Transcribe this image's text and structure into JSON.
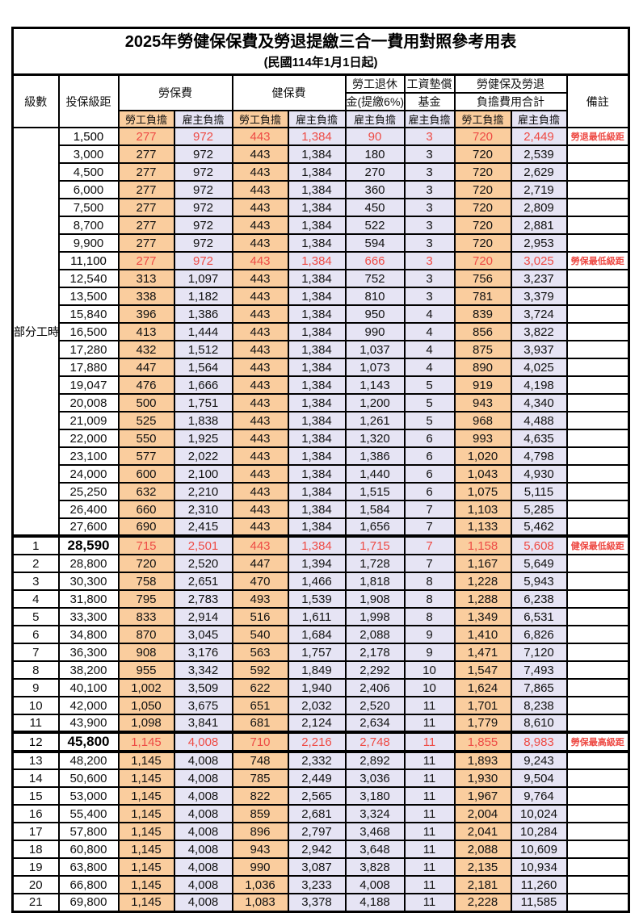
{
  "title": "2025年勞健保保費及勞退提繳三合一費用對照參考用表",
  "subtitle": "(民國114年1月1日起)",
  "headers": {
    "level": "級數",
    "bracket": "投保級距",
    "labor_ins": "勞保費",
    "health_ins": "健保費",
    "pension_line1": "勞工退休",
    "pension_line2": "金(提繳6%)",
    "wage_fund_line1": "工資墊償",
    "wage_fund_line2": "基金",
    "total_line1": "勞健保及勞退",
    "total_line2": "負擔費用合計",
    "note": "備註",
    "employee_share": "勞工負擔",
    "employer_share": "雇主負擔"
  },
  "part_time_label": "部分工時",
  "colors": {
    "employee_share_bg": "#FACD9E",
    "employer_share_bg": "#E6E4F4",
    "highlight_red": "#EE4B45",
    "border_black": "#000000"
  },
  "rows": [
    {
      "level": "",
      "bracket": "1,500",
      "labor_emp": "277",
      "labor_er": "972",
      "health_emp": "443",
      "health_er": "1,384",
      "pension_er": "90",
      "fund_er": "3",
      "total_emp": "720",
      "total_er": "2,449",
      "note": "勞退最低級距",
      "hl": true
    },
    {
      "level": "",
      "bracket": "3,000",
      "labor_emp": "277",
      "labor_er": "972",
      "health_emp": "443",
      "health_er": "1,384",
      "pension_er": "180",
      "fund_er": "3",
      "total_emp": "720",
      "total_er": "2,539",
      "note": ""
    },
    {
      "level": "",
      "bracket": "4,500",
      "labor_emp": "277",
      "labor_er": "972",
      "health_emp": "443",
      "health_er": "1,384",
      "pension_er": "270",
      "fund_er": "3",
      "total_emp": "720",
      "total_er": "2,629",
      "note": ""
    },
    {
      "level": "",
      "bracket": "6,000",
      "labor_emp": "277",
      "labor_er": "972",
      "health_emp": "443",
      "health_er": "1,384",
      "pension_er": "360",
      "fund_er": "3",
      "total_emp": "720",
      "total_er": "2,719",
      "note": ""
    },
    {
      "level": "",
      "bracket": "7,500",
      "labor_emp": "277",
      "labor_er": "972",
      "health_emp": "443",
      "health_er": "1,384",
      "pension_er": "450",
      "fund_er": "3",
      "total_emp": "720",
      "total_er": "2,809",
      "note": ""
    },
    {
      "level": "",
      "bracket": "8,700",
      "labor_emp": "277",
      "labor_er": "972",
      "health_emp": "443",
      "health_er": "1,384",
      "pension_er": "522",
      "fund_er": "3",
      "total_emp": "720",
      "total_er": "2,881",
      "note": ""
    },
    {
      "level": "",
      "bracket": "9,900",
      "labor_emp": "277",
      "labor_er": "972",
      "health_emp": "443",
      "health_er": "1,384",
      "pension_er": "594",
      "fund_er": "3",
      "total_emp": "720",
      "total_er": "2,953",
      "note": ""
    },
    {
      "level": "",
      "bracket": "11,100",
      "labor_emp": "277",
      "labor_er": "972",
      "health_emp": "443",
      "health_er": "1,384",
      "pension_er": "666",
      "fund_er": "3",
      "total_emp": "720",
      "total_er": "3,025",
      "note": "勞保最低級距",
      "hl": true
    },
    {
      "level": "",
      "bracket": "12,540",
      "labor_emp": "313",
      "labor_er": "1,097",
      "health_emp": "443",
      "health_er": "1,384",
      "pension_er": "752",
      "fund_er": "3",
      "total_emp": "756",
      "total_er": "3,237",
      "note": ""
    },
    {
      "level": "",
      "bracket": "13,500",
      "labor_emp": "338",
      "labor_er": "1,182",
      "health_emp": "443",
      "health_er": "1,384",
      "pension_er": "810",
      "fund_er": "3",
      "total_emp": "781",
      "total_er": "3,379",
      "note": ""
    },
    {
      "level": "",
      "bracket": "15,840",
      "labor_emp": "396",
      "labor_er": "1,386",
      "health_emp": "443",
      "health_er": "1,384",
      "pension_er": "950",
      "fund_er": "4",
      "total_emp": "839",
      "total_er": "3,724",
      "note": ""
    },
    {
      "level": "",
      "bracket": "16,500",
      "labor_emp": "413",
      "labor_er": "1,444",
      "health_emp": "443",
      "health_er": "1,384",
      "pension_er": "990",
      "fund_er": "4",
      "total_emp": "856",
      "total_er": "3,822",
      "note": ""
    },
    {
      "level": "",
      "bracket": "17,280",
      "labor_emp": "432",
      "labor_er": "1,512",
      "health_emp": "443",
      "health_er": "1,384",
      "pension_er": "1,037",
      "fund_er": "4",
      "total_emp": "875",
      "total_er": "3,937",
      "note": ""
    },
    {
      "level": "",
      "bracket": "17,880",
      "labor_emp": "447",
      "labor_er": "1,564",
      "health_emp": "443",
      "health_er": "1,384",
      "pension_er": "1,073",
      "fund_er": "4",
      "total_emp": "890",
      "total_er": "4,025",
      "note": ""
    },
    {
      "level": "",
      "bracket": "19,047",
      "labor_emp": "476",
      "labor_er": "1,666",
      "health_emp": "443",
      "health_er": "1,384",
      "pension_er": "1,143",
      "fund_er": "5",
      "total_emp": "919",
      "total_er": "4,198",
      "note": ""
    },
    {
      "level": "",
      "bracket": "20,008",
      "labor_emp": "500",
      "labor_er": "1,751",
      "health_emp": "443",
      "health_er": "1,384",
      "pension_er": "1,200",
      "fund_er": "5",
      "total_emp": "943",
      "total_er": "4,340",
      "note": ""
    },
    {
      "level": "",
      "bracket": "21,009",
      "labor_emp": "525",
      "labor_er": "1,838",
      "health_emp": "443",
      "health_er": "1,384",
      "pension_er": "1,261",
      "fund_er": "5",
      "total_emp": "968",
      "total_er": "4,488",
      "note": ""
    },
    {
      "level": "",
      "bracket": "22,000",
      "labor_emp": "550",
      "labor_er": "1,925",
      "health_emp": "443",
      "health_er": "1,384",
      "pension_er": "1,320",
      "fund_er": "6",
      "total_emp": "993",
      "total_er": "4,635",
      "note": ""
    },
    {
      "level": "",
      "bracket": "23,100",
      "labor_emp": "577",
      "labor_er": "2,022",
      "health_emp": "443",
      "health_er": "1,384",
      "pension_er": "1,386",
      "fund_er": "6",
      "total_emp": "1,020",
      "total_er": "4,798",
      "note": ""
    },
    {
      "level": "",
      "bracket": "24,000",
      "labor_emp": "600",
      "labor_er": "2,100",
      "health_emp": "443",
      "health_er": "1,384",
      "pension_er": "1,440",
      "fund_er": "6",
      "total_emp": "1,043",
      "total_er": "4,930",
      "note": ""
    },
    {
      "level": "",
      "bracket": "25,250",
      "labor_emp": "632",
      "labor_er": "2,210",
      "health_emp": "443",
      "health_er": "1,384",
      "pension_er": "1,515",
      "fund_er": "6",
      "total_emp": "1,075",
      "total_er": "5,115",
      "note": ""
    },
    {
      "level": "",
      "bracket": "26,400",
      "labor_emp": "660",
      "labor_er": "2,310",
      "health_emp": "443",
      "health_er": "1,384",
      "pension_er": "1,584",
      "fund_er": "7",
      "total_emp": "1,103",
      "total_er": "5,285",
      "note": ""
    },
    {
      "level": "",
      "bracket": "27,600",
      "labor_emp": "690",
      "labor_er": "2,415",
      "health_emp": "443",
      "health_er": "1,384",
      "pension_er": "1,656",
      "fund_er": "7",
      "total_emp": "1,133",
      "total_er": "5,462",
      "note": ""
    },
    {
      "level": "1",
      "bracket": "28,590",
      "labor_emp": "715",
      "labor_er": "2,501",
      "health_emp": "443",
      "health_er": "1,384",
      "pension_er": "1,715",
      "fund_er": "7",
      "total_emp": "1,158",
      "total_er": "5,608",
      "note": "健保最低級距",
      "hl": true,
      "em": true,
      "sep": "top"
    },
    {
      "level": "2",
      "bracket": "28,800",
      "labor_emp": "720",
      "labor_er": "2,520",
      "health_emp": "447",
      "health_er": "1,394",
      "pension_er": "1,728",
      "fund_er": "7",
      "total_emp": "1,167",
      "total_er": "5,649",
      "note": ""
    },
    {
      "level": "3",
      "bracket": "30,300",
      "labor_emp": "758",
      "labor_er": "2,651",
      "health_emp": "470",
      "health_er": "1,466",
      "pension_er": "1,818",
      "fund_er": "8",
      "total_emp": "1,228",
      "total_er": "5,943",
      "note": ""
    },
    {
      "level": "4",
      "bracket": "31,800",
      "labor_emp": "795",
      "labor_er": "2,783",
      "health_emp": "493",
      "health_er": "1,539",
      "pension_er": "1,908",
      "fund_er": "8",
      "total_emp": "1,288",
      "total_er": "6,238",
      "note": ""
    },
    {
      "level": "5",
      "bracket": "33,300",
      "labor_emp": "833",
      "labor_er": "2,914",
      "health_emp": "516",
      "health_er": "1,611",
      "pension_er": "1,998",
      "fund_er": "8",
      "total_emp": "1,349",
      "total_er": "6,531",
      "note": ""
    },
    {
      "level": "6",
      "bracket": "34,800",
      "labor_emp": "870",
      "labor_er": "3,045",
      "health_emp": "540",
      "health_er": "1,684",
      "pension_er": "2,088",
      "fund_er": "9",
      "total_emp": "1,410",
      "total_er": "6,826",
      "note": ""
    },
    {
      "level": "7",
      "bracket": "36,300",
      "labor_emp": "908",
      "labor_er": "3,176",
      "health_emp": "563",
      "health_er": "1,757",
      "pension_er": "2,178",
      "fund_er": "9",
      "total_emp": "1,471",
      "total_er": "7,120",
      "note": ""
    },
    {
      "level": "8",
      "bracket": "38,200",
      "labor_emp": "955",
      "labor_er": "3,342",
      "health_emp": "592",
      "health_er": "1,849",
      "pension_er": "2,292",
      "fund_er": "10",
      "total_emp": "1,547",
      "total_er": "7,493",
      "note": ""
    },
    {
      "level": "9",
      "bracket": "40,100",
      "labor_emp": "1,002",
      "labor_er": "3,509",
      "health_emp": "622",
      "health_er": "1,940",
      "pension_er": "2,406",
      "fund_er": "10",
      "total_emp": "1,624",
      "total_er": "7,865",
      "note": ""
    },
    {
      "level": "10",
      "bracket": "42,000",
      "labor_emp": "1,050",
      "labor_er": "3,675",
      "health_emp": "651",
      "health_er": "2,032",
      "pension_er": "2,520",
      "fund_er": "11",
      "total_emp": "1,701",
      "total_er": "8,238",
      "note": ""
    },
    {
      "level": "11",
      "bracket": "43,900",
      "labor_emp": "1,098",
      "labor_er": "3,841",
      "health_emp": "681",
      "health_er": "2,124",
      "pension_er": "2,634",
      "fund_er": "11",
      "total_emp": "1,779",
      "total_er": "8,610",
      "note": ""
    },
    {
      "level": "12",
      "bracket": "45,800",
      "labor_emp": "1,145",
      "labor_er": "4,008",
      "health_emp": "710",
      "health_er": "2,216",
      "pension_er": "2,748",
      "fund_er": "11",
      "total_emp": "1,855",
      "total_er": "8,983",
      "note": "勞保最高級距",
      "hl": true,
      "em": true,
      "sep": "both"
    },
    {
      "level": "13",
      "bracket": "48,200",
      "labor_emp": "1,145",
      "labor_er": "4,008",
      "health_emp": "748",
      "health_er": "2,332",
      "pension_er": "2,892",
      "fund_er": "11",
      "total_emp": "1,893",
      "total_er": "9,243",
      "note": ""
    },
    {
      "level": "14",
      "bracket": "50,600",
      "labor_emp": "1,145",
      "labor_er": "4,008",
      "health_emp": "785",
      "health_er": "2,449",
      "pension_er": "3,036",
      "fund_er": "11",
      "total_emp": "1,930",
      "total_er": "9,504",
      "note": ""
    },
    {
      "level": "15",
      "bracket": "53,000",
      "labor_emp": "1,145",
      "labor_er": "4,008",
      "health_emp": "822",
      "health_er": "2,565",
      "pension_er": "3,180",
      "fund_er": "11",
      "total_emp": "1,967",
      "total_er": "9,764",
      "note": ""
    },
    {
      "level": "16",
      "bracket": "55,400",
      "labor_emp": "1,145",
      "labor_er": "4,008",
      "health_emp": "859",
      "health_er": "2,681",
      "pension_er": "3,324",
      "fund_er": "11",
      "total_emp": "2,004",
      "total_er": "10,024",
      "note": ""
    },
    {
      "level": "17",
      "bracket": "57,800",
      "labor_emp": "1,145",
      "labor_er": "4,008",
      "health_emp": "896",
      "health_er": "2,797",
      "pension_er": "3,468",
      "fund_er": "11",
      "total_emp": "2,041",
      "total_er": "10,284",
      "note": ""
    },
    {
      "level": "18",
      "bracket": "60,800",
      "labor_emp": "1,145",
      "labor_er": "4,008",
      "health_emp": "943",
      "health_er": "2,942",
      "pension_er": "3,648",
      "fund_er": "11",
      "total_emp": "2,088",
      "total_er": "10,609",
      "note": ""
    },
    {
      "level": "19",
      "bracket": "63,800",
      "labor_emp": "1,145",
      "labor_er": "4,008",
      "health_emp": "990",
      "health_er": "3,087",
      "pension_er": "3,828",
      "fund_er": "11",
      "total_emp": "2,135",
      "total_er": "10,934",
      "note": ""
    },
    {
      "level": "20",
      "bracket": "66,800",
      "labor_emp": "1,145",
      "labor_er": "4,008",
      "health_emp": "1,036",
      "health_er": "3,233",
      "pension_er": "4,008",
      "fund_er": "11",
      "total_emp": "2,181",
      "total_er": "11,260",
      "note": ""
    },
    {
      "level": "21",
      "bracket": "69,800",
      "labor_emp": "1,145",
      "labor_er": "4,008",
      "health_emp": "1,083",
      "health_er": "3,378",
      "pension_er": "4,188",
      "fund_er": "11",
      "total_emp": "2,228",
      "total_er": "11,585",
      "note": ""
    }
  ]
}
